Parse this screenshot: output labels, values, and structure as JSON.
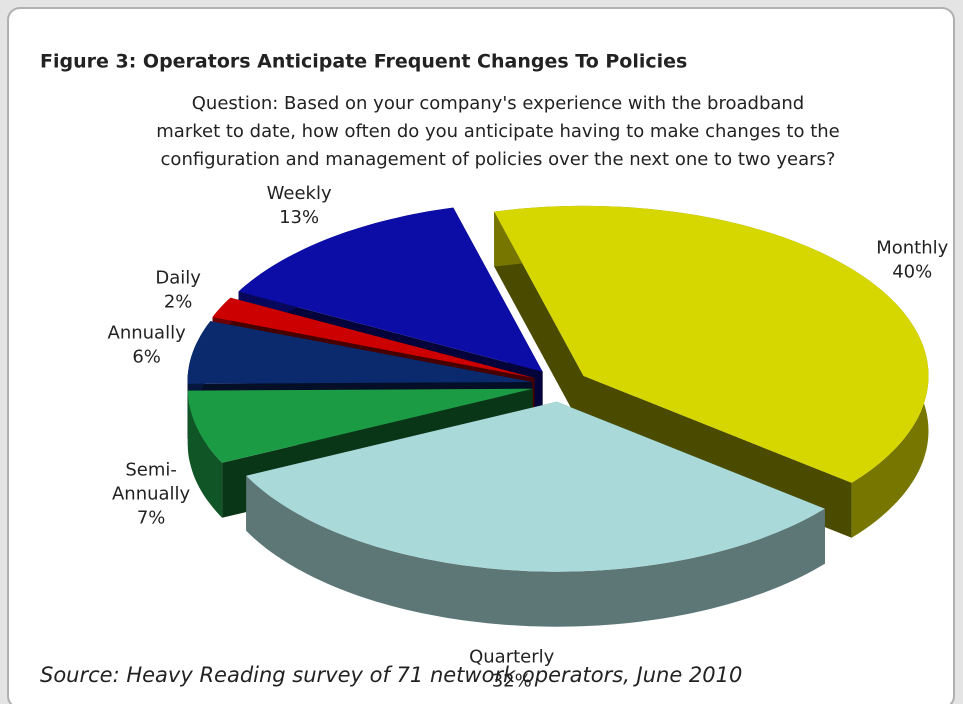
{
  "chart_data": {
    "type": "pie3d",
    "title": "Figure 3: Operators Anticipate Frequent Changes To Policies",
    "subtitle": [
      "Question: Based on your company's experience with the broadband",
      "market to date, how often do you anticipate having to make changes to the",
      "configuration and management of policies over the next one to two years?"
    ],
    "categories": [
      "Monthly",
      "Quarterly",
      "Semi-Annually",
      "Annually",
      "Daily",
      "Weekly"
    ],
    "values": [
      40,
      32,
      7,
      6,
      2,
      13
    ],
    "value_labels": [
      "40%",
      "32%",
      "7%",
      "6%",
      "2%",
      "13%"
    ],
    "colors": [
      "#d6d600",
      "#a9d9d9",
      "#1c9b45",
      "#0b2a6e",
      "#cc0000",
      "#0c0ca6"
    ],
    "source": "Source: Heavy Reading survey of 71 network operators, June 2010"
  }
}
